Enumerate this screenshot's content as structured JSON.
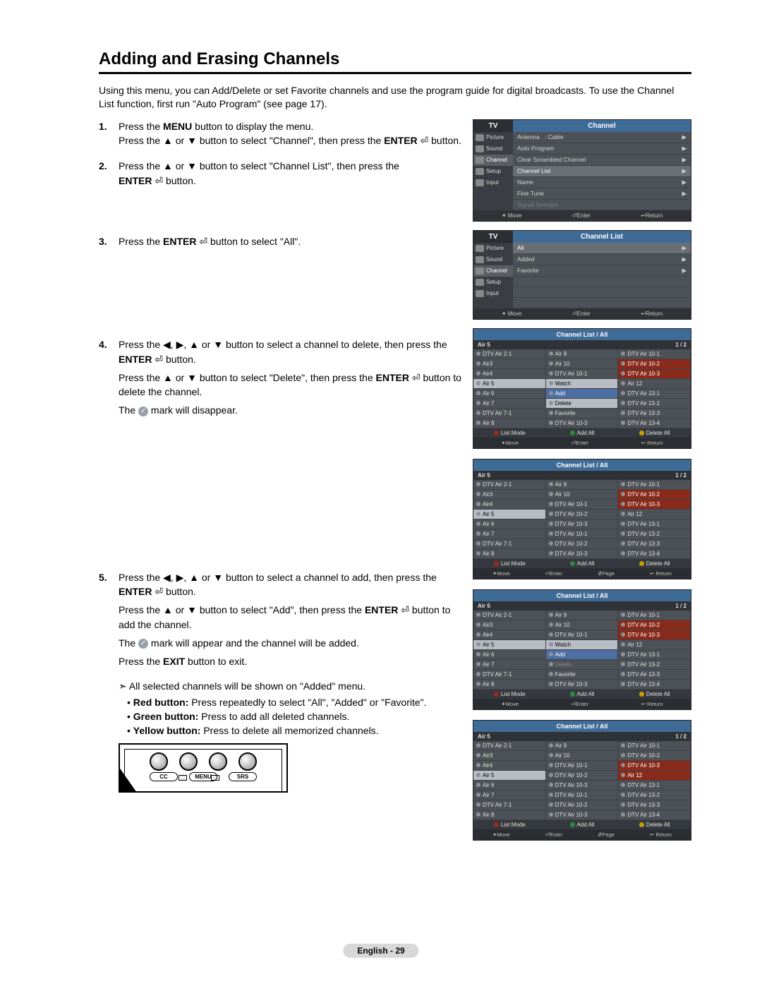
{
  "title": "Adding and Erasing Channels",
  "intro": "Using this menu, you can Add/Delete or set Favorite channels and use the program guide for digital broadcasts. To use the Channel List function, first run \"Auto Program\" (see page 17).",
  "steps": {
    "s1": {
      "l1_a": "Press the ",
      "l1_b": "MENU",
      "l1_c": " button to display the menu.",
      "l2_a": "Press the ▲ or ▼ button to select \"Channel\", then press the ",
      "l2_b": "ENTER",
      "l2_c": " ⏎ button."
    },
    "s2": {
      "l1": "Press the ▲ or ▼ button to select \"Channel List\", then press the",
      "l2_a": "ENTER",
      "l2_b": " ⏎ button."
    },
    "s3": {
      "l1_a": "Press the ",
      "l1_b": "ENTER",
      "l1_c": " ⏎ button to select \"All\"."
    },
    "s4": {
      "l1": "Press the  ◀, ▶, ▲ or ▼ button to select a channel to delete, then press the",
      "l2_a": "ENTER",
      "l2_b": " ⏎ button.",
      "l3_a": "Press the ▲ or ▼ button to select \"Delete\", then press the ",
      "l3_b": "ENTER",
      "l3_c": " ⏎ button to delete the channel.",
      "l4_a": "The ",
      "l4_b": " mark will disappear."
    },
    "s5": {
      "l1": "Press the ◀, ▶, ▲ or ▼ button to select a channel to add, then press the",
      "l2_a": "ENTER",
      "l2_b": " ⏎ button.",
      "l3_a": "Press the ▲ or ▼ button to select \"Add\", then press the ",
      "l3_b": "ENTER",
      "l3_c": " ⏎ button to add the channel.",
      "l4_a": "The ",
      "l4_b": " mark will appear and the channel will be added.",
      "l5_a": "Press the ",
      "l5_b": "EXIT",
      "l5_c": " button to exit."
    }
  },
  "note": "➣ All selected channels will be shown on \"Added\" menu.",
  "bullets": {
    "b1_a": "Red button:",
    "b1_b": " Press repeatedly to select \"All\", \"Added\" or \"Favorite\".",
    "b2_a": "Green button:",
    "b2_b": " Press to add all deleted channels.",
    "b3_a": "Yellow button:",
    "b3_b": " Press to delete all memorized channels."
  },
  "osd1": {
    "tv": "TV",
    "title": "Channel",
    "side": [
      "Picture",
      "Sound",
      "Channel",
      "Setup",
      "Input"
    ],
    "rows": [
      {
        "l": "Antenna",
        "r": ": Cable",
        "a": "▶"
      },
      {
        "l": "Auto Program",
        "r": "",
        "a": "▶"
      },
      {
        "l": "Clear Scrambled Channel",
        "r": "",
        "a": "▶"
      },
      {
        "l": "Channel List",
        "r": "",
        "a": "▶",
        "sel": true
      },
      {
        "l": "Name",
        "r": "",
        "a": "▶"
      },
      {
        "l": "Fine Tune",
        "r": "",
        "a": "▶"
      },
      {
        "l": "Signal Strength",
        "r": "",
        "a": "",
        "dim": true
      }
    ],
    "ftr": {
      "move": "✦ Move",
      "enter": "⏎Enter",
      "ret": "↩Return"
    }
  },
  "osd2": {
    "tv": "TV",
    "title": "Channel List",
    "side": [
      "Picture",
      "Sound",
      "Channel",
      "Setup",
      "Input"
    ],
    "rows": [
      {
        "l": "All",
        "a": "▶",
        "sel": true
      },
      {
        "l": "Added",
        "a": "▶"
      },
      {
        "l": "Favorite",
        "a": "▶"
      }
    ],
    "ftr": {
      "move": "✦ Move",
      "enter": "⏎Enter",
      "ret": "↩Return"
    }
  },
  "clist_common": {
    "title": "Channel List / All",
    "sub_l": "Air 5",
    "sub_r": "1 / 2",
    "btns": {
      "listmode": "List Mode",
      "addall": "Add All",
      "delall": "Delete All"
    },
    "col_red": "#9c2a1a",
    "col_green": "#2e8b3a",
    "col_yellow": "#c8a000",
    "ftr4": {
      "move": "✦Move",
      "enter": "⏎Enter",
      "page": "⇵Page",
      "ret": "↩ Return"
    },
    "ftr3": {
      "move": "✦Move",
      "enter": "⏎Enter",
      "ret": "↩ Return"
    }
  },
  "clist1": {
    "col1": [
      "DTV Air 2-1",
      "Air3",
      "Air4",
      "Air 5",
      "Air 6",
      "Air 7",
      "DTV Air 7-1",
      "Air 8"
    ],
    "col2": [
      "Air 9",
      "Air 10",
      "DTV Air 10-1",
      "Watch",
      "Add",
      "Delete",
      "Favorite",
      "DTV Air 10-3"
    ],
    "col3": [
      "DTV Air 10-1",
      "DTV Air 10-2",
      "DTV Air 10-3",
      "Air 12",
      "DTV Air 13-1",
      "DTV Air 13-2",
      "DTV Air 13-3",
      "DTV Air 13-4"
    ],
    "hl_c1": [
      3
    ],
    "hl_c2": [
      3,
      5
    ],
    "red_c3": [
      1,
      2
    ],
    "blue_c2": [
      4
    ]
  },
  "clist2": {
    "col1": [
      "DTV Air 2-1",
      "Air3",
      "Air4",
      "Air 5",
      "Air 6",
      "Air 7",
      "DTV Air 7-1",
      "Air 8"
    ],
    "col2": [
      "Air 9",
      "Air 10",
      "DTV Air 10-1",
      "DTV Air 10-2",
      "DTV Air 10-3",
      "DTV Air 10-1",
      "DTV Air 10-2",
      "DTV Air 10-3"
    ],
    "col3": [
      "DTV Air 10-1",
      "DTV Air 10-2",
      "DTV Air 10-3",
      "Air 12",
      "DTV Air 13-1",
      "DTV Air 13-2",
      "DTV Air 13-3",
      "DTV Air 13-4"
    ],
    "hl_c1": [
      3
    ],
    "red_c3": [
      1,
      2
    ]
  },
  "clist3": {
    "col1": [
      "DTV Air 2-1",
      "Air3",
      "Air4",
      "Air 5",
      "Air 6",
      "Air 7",
      "DTV Air 7-1",
      "Air 8"
    ],
    "col2": [
      "Air 9",
      "Air 10",
      "DTV Air 10-1",
      "Watch",
      "Add",
      "Delete",
      "Favorite",
      "DTV Air 10-3"
    ],
    "col3": [
      "DTV Air 10-1",
      "DTV Air 10-2",
      "DTV Air 10-3",
      "Air 12",
      "DTV Air 13-1",
      "DTV Air 13-2",
      "DTV Air 13-3",
      "DTV Air 13-4"
    ],
    "hl_c1": [
      3
    ],
    "hl_c2": [
      3
    ],
    "blue_c2": [
      4
    ],
    "dim_c2": [
      5
    ],
    "red_c3": [
      1,
      2
    ]
  },
  "clist4": {
    "col1": [
      "DTV Air 2-1",
      "Air3",
      "Air4",
      "Air 5",
      "Air 6",
      "Air 7",
      "DTV Air 7-1",
      "Air 8"
    ],
    "col2": [
      "Air 9",
      "Air 10",
      "DTV Air 10-1",
      "DTV Air 10-2",
      "DTV Air 10-3",
      "DTV Air 10-1",
      "DTV Air 10-2",
      "DTV Air 10-3"
    ],
    "col3": [
      "DTV Air 10-1",
      "DTV Air 10-2",
      "DTV Air 10-3",
      "Air 12",
      "DTV Air 13-1",
      "DTV Air 13-2",
      "DTV Air 13-3",
      "DTV Air 13-4"
    ],
    "hl_c1": [
      3
    ],
    "red_c3": [
      2,
      3
    ]
  },
  "remote": {
    "labels": [
      "CC",
      "MENU",
      "SRS"
    ]
  },
  "footer": "English - 29"
}
